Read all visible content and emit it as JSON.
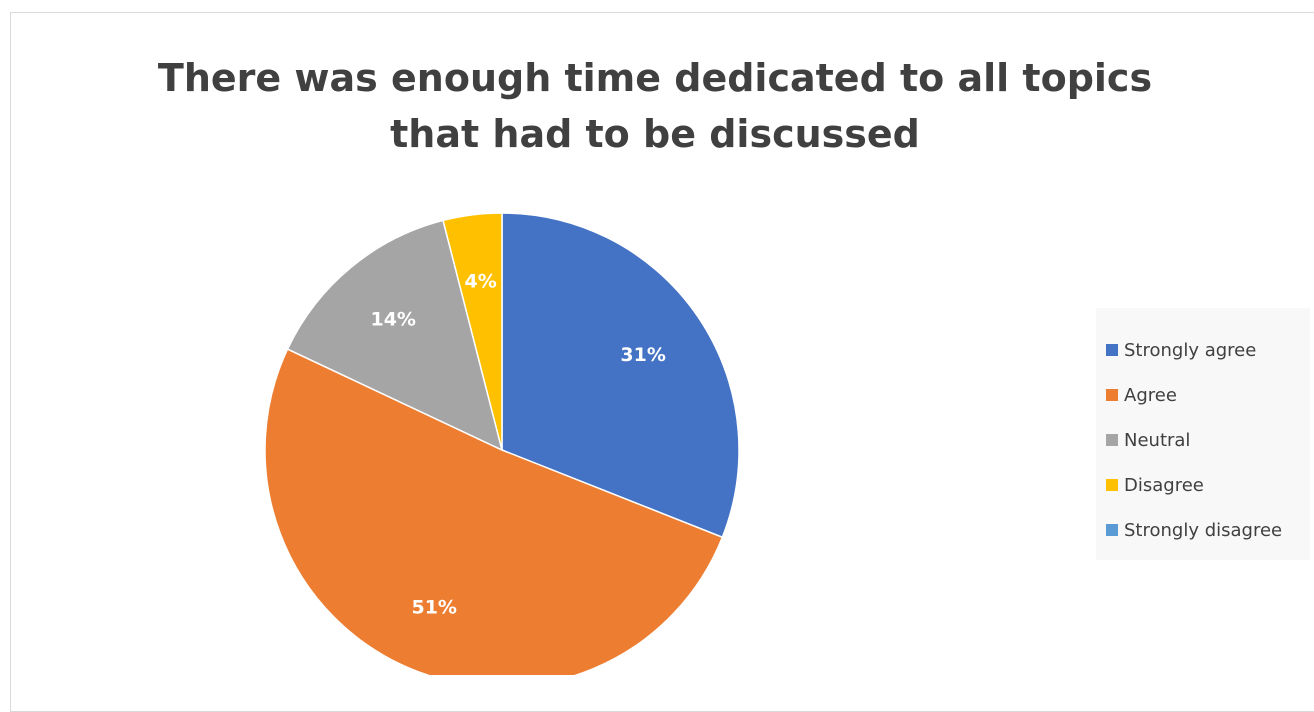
{
  "chart_data": {
    "type": "pie",
    "title": "There was enough time dedicated to all topics that had to be discussed",
    "categories": [
      "Strongly agree",
      "Agree",
      "Neutral",
      "Disagree",
      "Strongly disagree"
    ],
    "values": [
      31,
      51,
      14,
      4,
      0
    ],
    "labels": [
      "31%",
      "51%",
      "14%",
      "4%",
      ""
    ],
    "colors": [
      "#4472C4",
      "#ED7D31",
      "#A5A5A5",
      "#FFC000",
      "#5B9BD5"
    ],
    "legend_position": "right"
  }
}
